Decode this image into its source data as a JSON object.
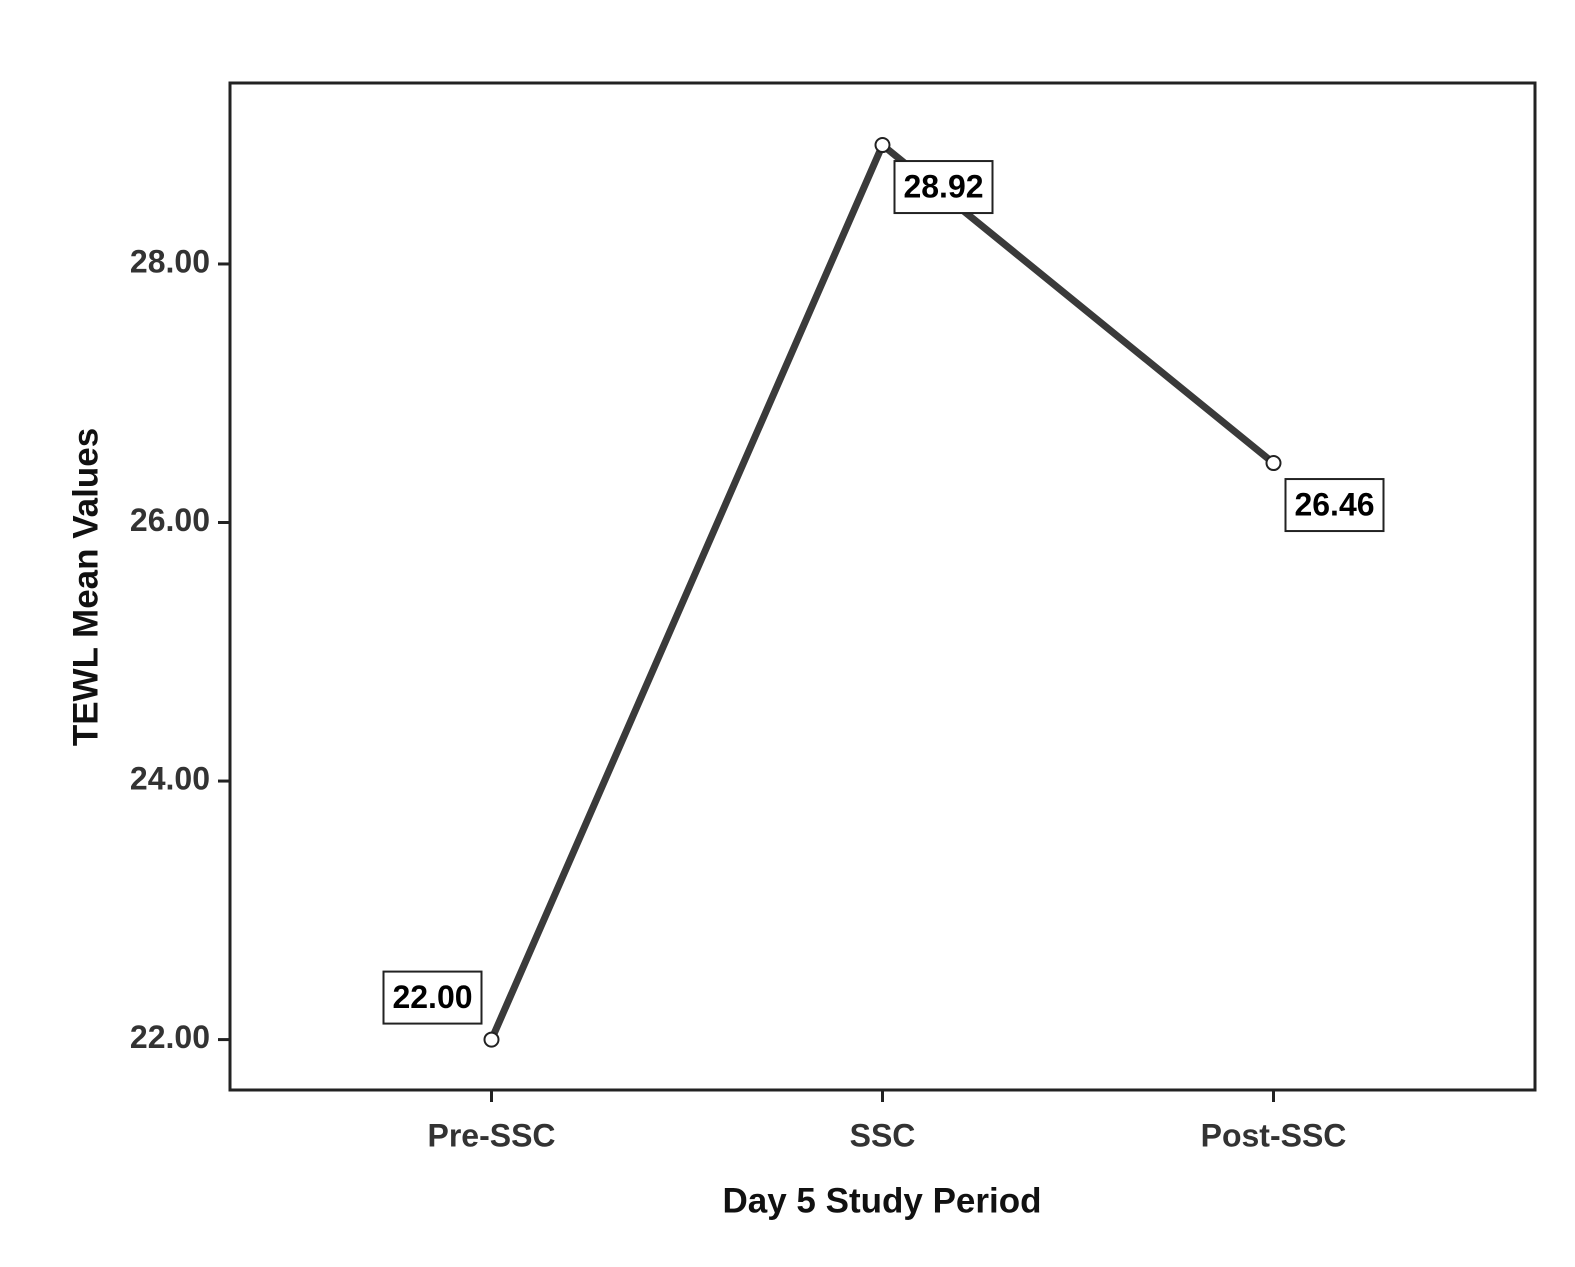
{
  "chart_data": {
    "type": "line",
    "x_label": "Day 5 Study Period",
    "y_label": "TEWL Mean Values",
    "categories": [
      "Pre-SSC",
      "SSC",
      "Post-SSC"
    ],
    "values": [
      22.0,
      28.92,
      26.46
    ],
    "value_labels": [
      "22.00",
      "28.92",
      "26.46"
    ],
    "color": "#3a3a3a",
    "ylim": [
      21.61,
      29.4
    ],
    "yticks": [
      {
        "value": 22,
        "label": "22.00"
      },
      {
        "value": 24,
        "label": "24.00"
      },
      {
        "value": 26,
        "label": "26.00"
      },
      {
        "value": 28,
        "label": "28.00"
      }
    ],
    "grid": false
  }
}
